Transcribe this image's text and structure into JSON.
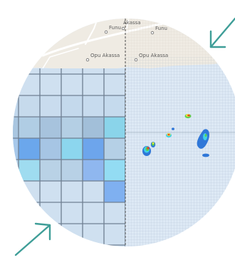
{
  "map": {
    "places": [
      {
        "name": "Akassa"
      },
      {
        "name": "Funu"
      },
      {
        "name": "Funu"
      },
      {
        "name": "Opu Akassa"
      },
      {
        "name": "Opu Akassa"
      }
    ],
    "left_panel": {
      "kind": "coarse-grid",
      "fill": "#cfe0f0"
    },
    "right_panel": {
      "kind": "fine-grid",
      "fill": "#dde9f5"
    },
    "colors": {
      "land": "#efebe3",
      "road": "#ffffff",
      "coarse_grid_line": "#6f7f92",
      "fine_grid_line": "#b7c8da",
      "arrow": "#3f9e98",
      "detection_blue": "#2f77d8",
      "detection_cyan": "#3fd0e6",
      "detection_green": "#5ccf4e",
      "detection_yellow": "#f2e23a",
      "detection_red": "#e2412e"
    },
    "icons": [
      "arrow-top-right-icon",
      "arrow-bottom-left-icon",
      "place-marker-icon"
    ]
  }
}
